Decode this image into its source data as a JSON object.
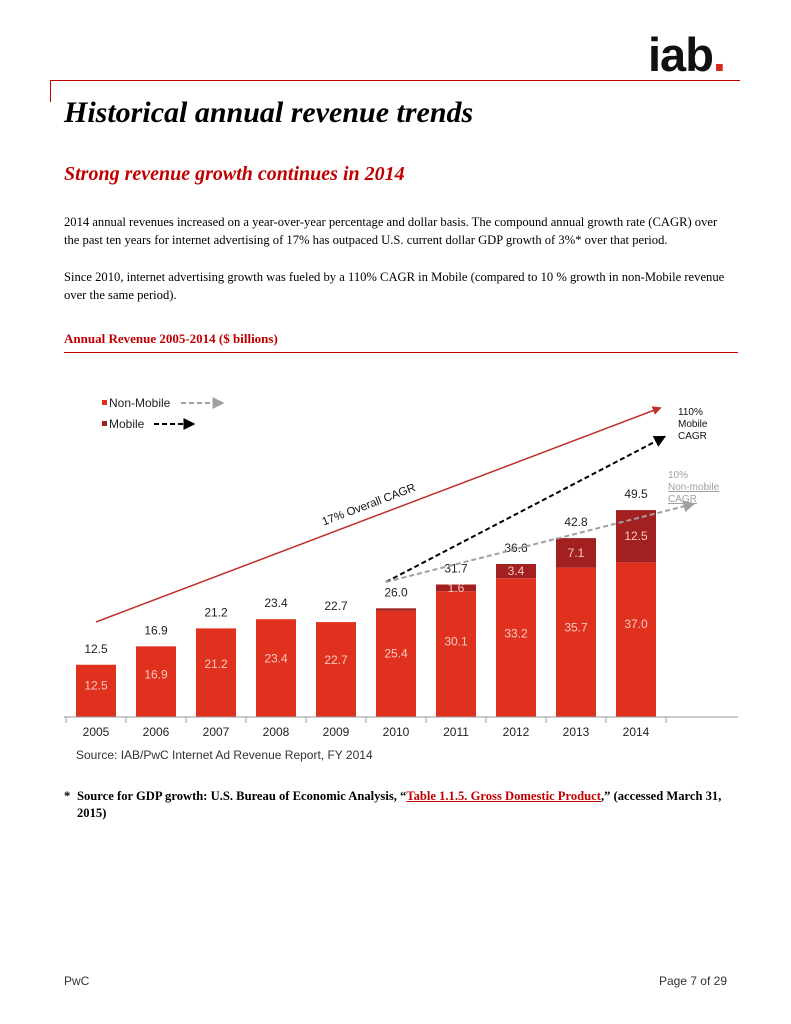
{
  "logo": {
    "text": "iab",
    "dot": "."
  },
  "page_title": "Historical annual revenue trends",
  "section_title": "Strong revenue growth continues in 2014",
  "paragraphs": [
    "2014 annual revenues increased on a year-over-year percentage and dollar basis. The compound annual growth rate (CAGR) over the past ten years for internet advertising of 17% has outpaced U.S. current dollar GDP growth of 3%* over that period.",
    "Since 2010, internet advertising growth was fueled by a 110% CAGR in Mobile (compared to 10 % growth in non-Mobile revenue over the same period)."
  ],
  "chart_data": {
    "type": "bar",
    "stacked": true,
    "title": "Annual Revenue 2005-2014 ($ billions)",
    "categories": [
      "2005",
      "2006",
      "2007",
      "2008",
      "2009",
      "2010",
      "2011",
      "2012",
      "2013",
      "2014"
    ],
    "series": [
      {
        "name": "Non-Mobile",
        "color": "#e0301e",
        "values": [
          12.5,
          16.9,
          21.2,
          23.4,
          22.7,
          25.4,
          30.1,
          33.2,
          35.7,
          37.0
        ]
      },
      {
        "name": "Mobile",
        "color": "#a32020",
        "values": [
          null,
          null,
          null,
          null,
          null,
          0.6,
          1.6,
          3.4,
          7.1,
          12.5
        ],
        "labels": [
          "",
          "",
          "",
          "",
          "",
          "",
          "1.6",
          "3.4",
          "7.1",
          "12.5"
        ]
      }
    ],
    "totals": [
      12.5,
      16.9,
      21.2,
      23.4,
      22.7,
      26.0,
      31.7,
      36.6,
      42.8,
      49.5
    ],
    "ylim": [
      0,
      55
    ],
    "legend": {
      "placement": "top-left",
      "items": [
        {
          "label": "Non-Mobile",
          "color": "#e0301e",
          "arrow_color": "#a0a0a0"
        },
        {
          "label": "Mobile",
          "color": "#a32020",
          "arrow_color": "#000000"
        }
      ]
    },
    "annotations": {
      "overall_cagr": "17% Overall CAGR",
      "mobile_cagr": [
        "110%",
        "Mobile",
        "CAGR"
      ],
      "nonmobile_cagr": [
        "10%",
        "Non-mobile",
        "CAGR"
      ]
    },
    "source": "Source: IAB/PwC Internet Ad Revenue Report, FY 2014"
  },
  "footnote": {
    "star": "*",
    "prefix": "Source for GDP growth: U.S. Bureau of Economic Analysis, “",
    "link": "Table 1.1.5. Gross Domestic Product",
    "suffix": ",” (accessed March 31, 2015)"
  },
  "footer": {
    "left": "PwC",
    "right": "Page 7 of 29"
  }
}
